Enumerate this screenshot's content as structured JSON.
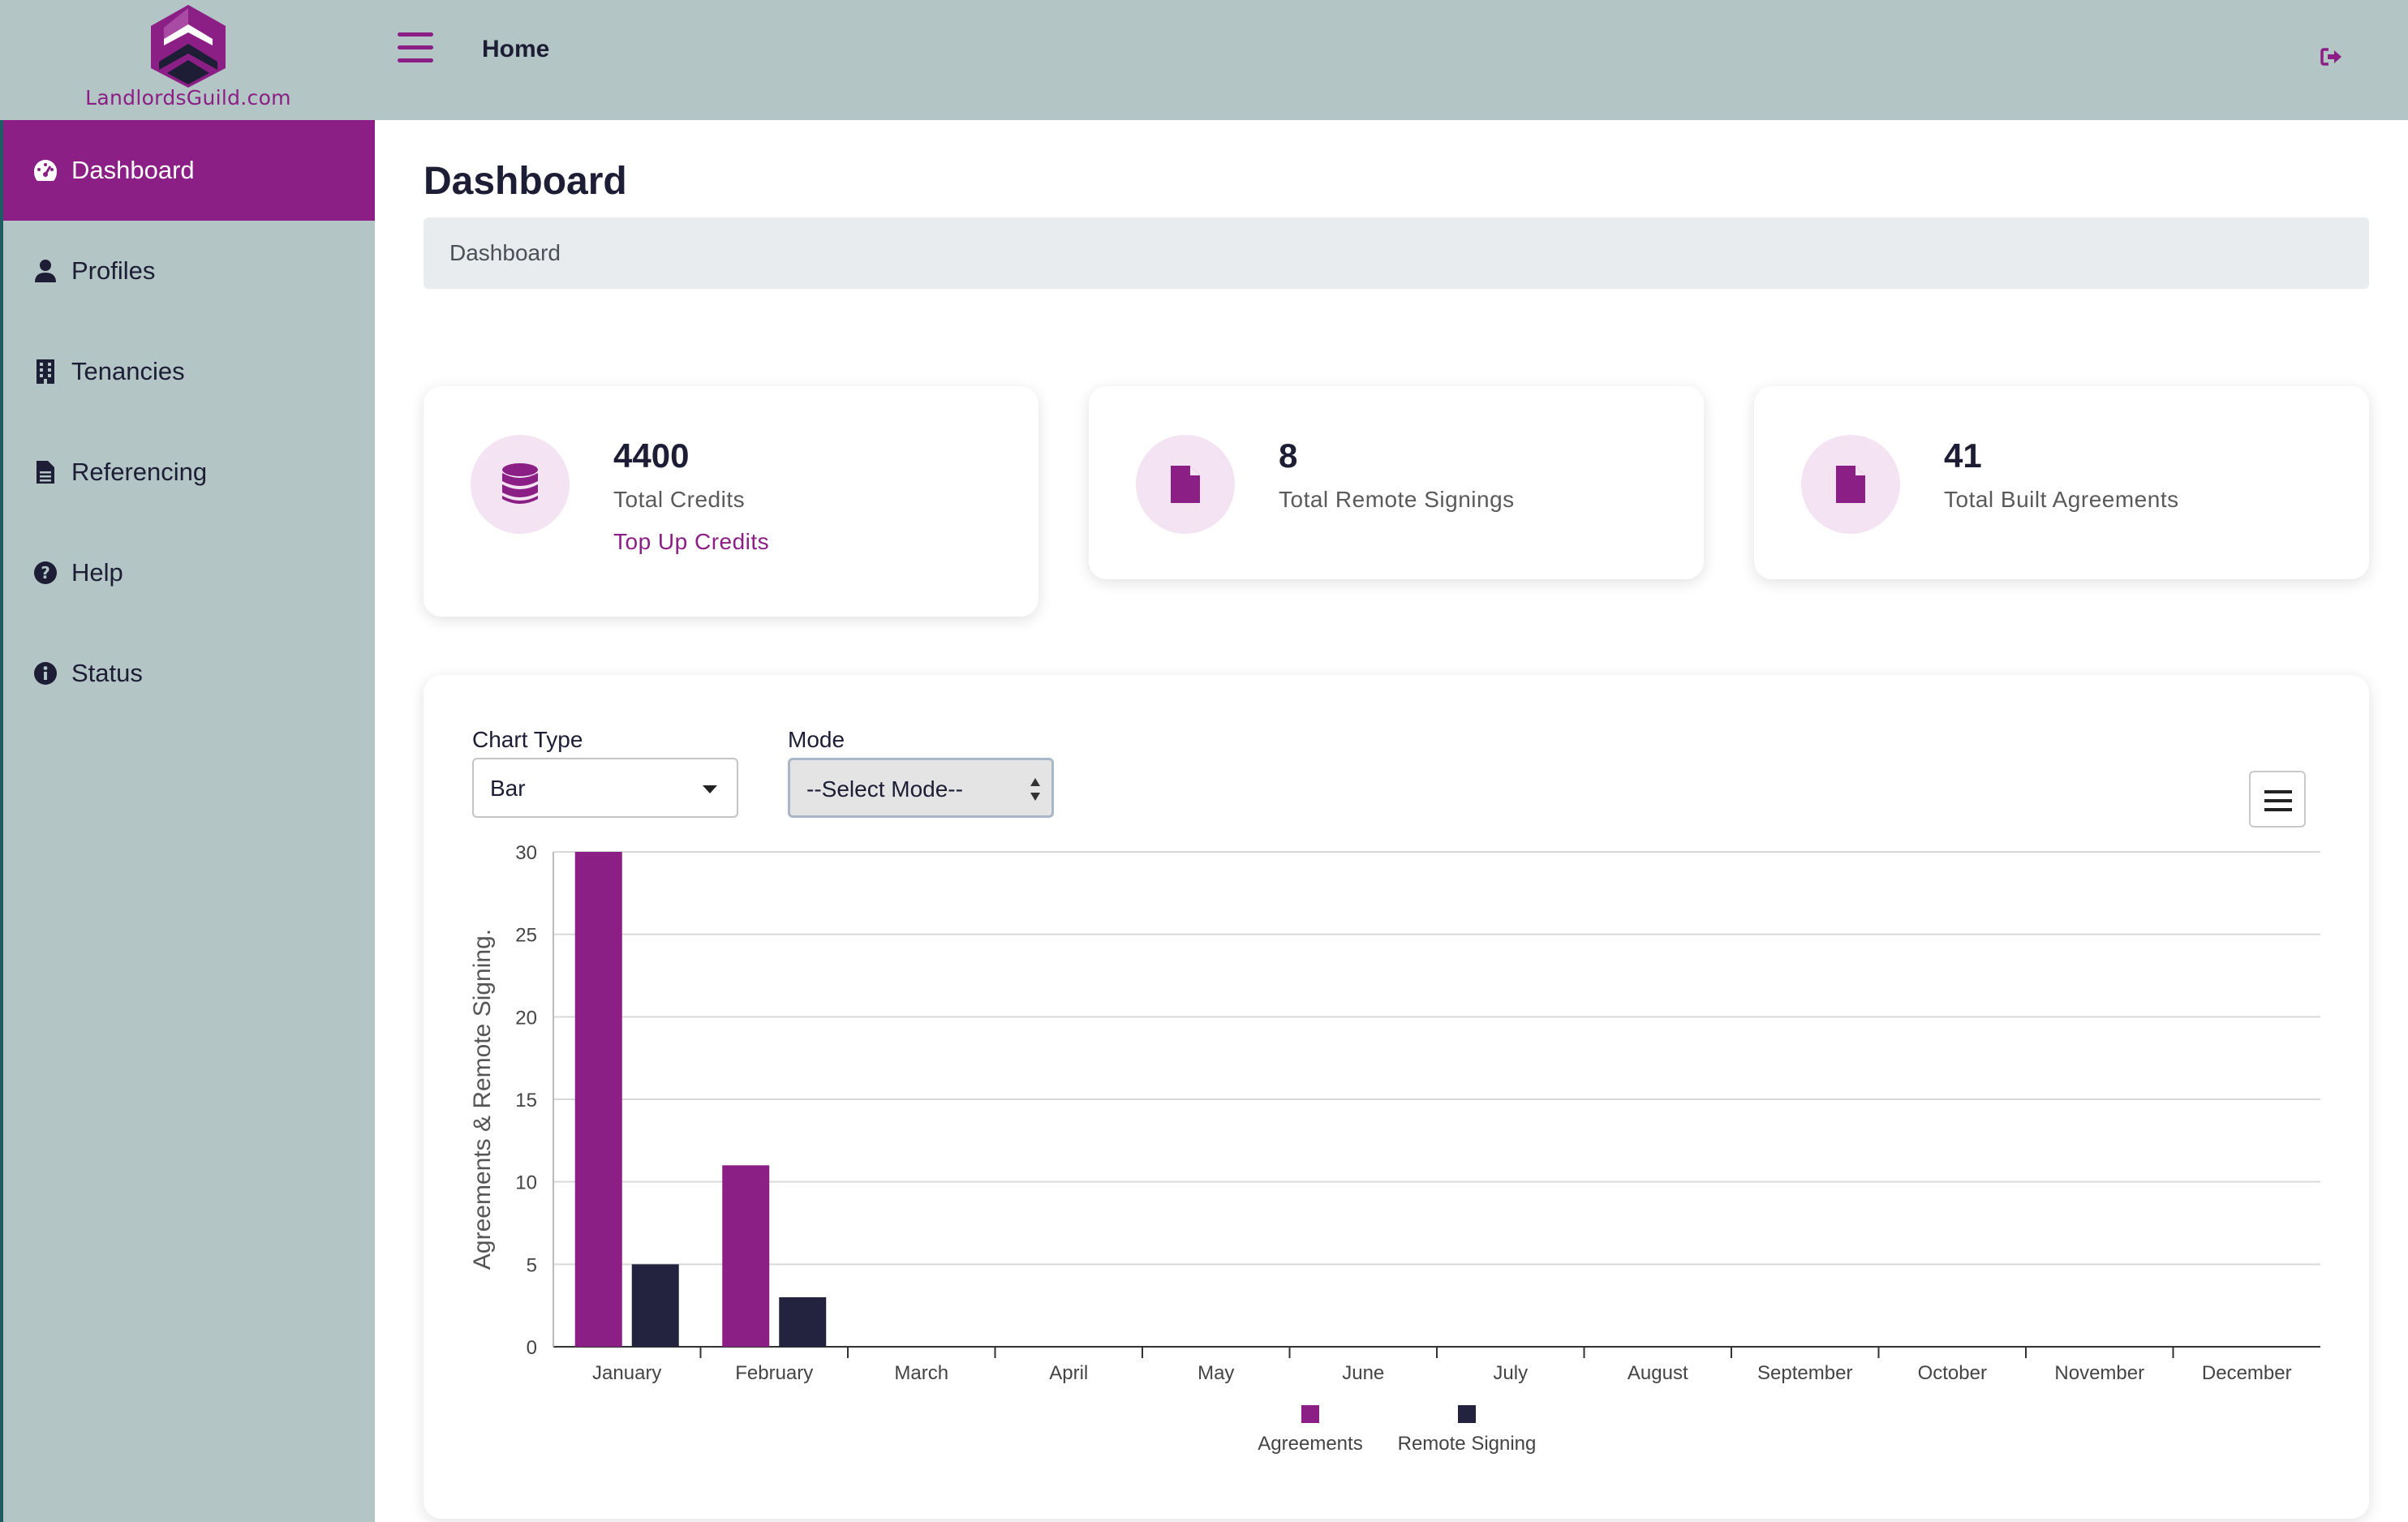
{
  "app": {
    "logo_text": "LandlordsGuild.com",
    "header_title": "Home",
    "accent": "#8b1f86",
    "secondary": "#23233f"
  },
  "sidebar": {
    "items": [
      {
        "label": "Dashboard",
        "icon": "gauge-icon",
        "active": true
      },
      {
        "label": "Profiles",
        "icon": "user-icon",
        "active": false
      },
      {
        "label": "Tenancies",
        "icon": "building-icon",
        "active": false
      },
      {
        "label": "Referencing",
        "icon": "file-text-icon",
        "active": false
      },
      {
        "label": "Help",
        "icon": "question-circle-icon",
        "active": false
      },
      {
        "label": "Status",
        "icon": "info-circle-icon",
        "active": false
      }
    ]
  },
  "main": {
    "title": "Dashboard",
    "breadcrumb": "Dashboard"
  },
  "stats": [
    {
      "value": "4400",
      "label": "Total Credits",
      "link": "Top Up Credits",
      "icon": "database-icon"
    },
    {
      "value": "8",
      "label": "Total Remote Signings",
      "icon": "file-icon"
    },
    {
      "value": "41",
      "label": "Total Built Agreements",
      "icon": "file-icon"
    }
  ],
  "controls": {
    "chart_type_label": "Chart Type",
    "chart_type_value": "Bar",
    "mode_label": "Mode",
    "mode_value": "--Select Mode--"
  },
  "chart_data": {
    "type": "bar",
    "categories": [
      "January",
      "February",
      "March",
      "April",
      "May",
      "June",
      "July",
      "August",
      "September",
      "October",
      "November",
      "December"
    ],
    "series": [
      {
        "name": "Agreements",
        "color": "#8b1f86",
        "values": [
          30,
          11,
          0,
          0,
          0,
          0,
          0,
          0,
          0,
          0,
          0,
          0
        ]
      },
      {
        "name": "Remote Signing",
        "color": "#23233f",
        "values": [
          5,
          3,
          0,
          0,
          0,
          0,
          0,
          0,
          0,
          0,
          0,
          0
        ]
      }
    ],
    "ylabel": "Agreements & Remote Signing.",
    "ylim": [
      0,
      30
    ],
    "yticks": [
      0,
      5,
      10,
      15,
      20,
      25,
      30
    ],
    "grid": true,
    "legend": "bottom-center"
  }
}
